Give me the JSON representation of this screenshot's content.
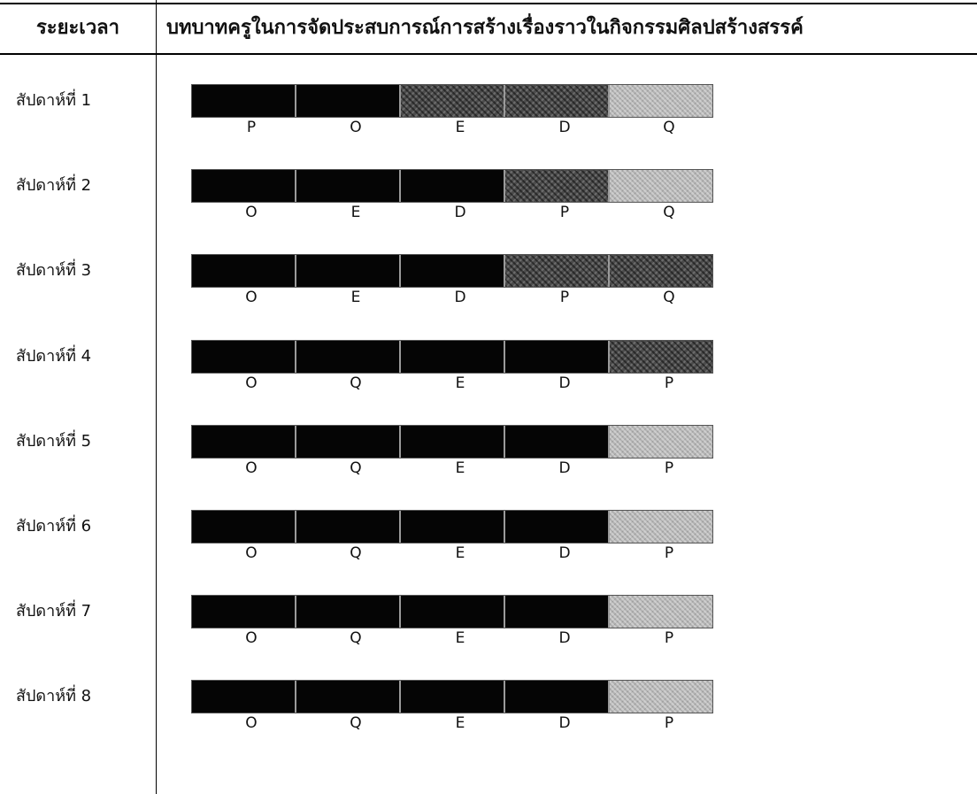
{
  "header": {
    "period_label": "ระยะเวลา",
    "role_label": "บทบาทครูในการจัดประสบการณ์การสร้างเรื่องราวในกิจกรรมศิลปสร้างสรรค์"
  },
  "rows": [
    {
      "label": "สัปดาห์ที่ 1",
      "segments": [
        {
          "letter": "P",
          "level": "full"
        },
        {
          "letter": "O",
          "level": "full"
        },
        {
          "letter": "E",
          "level": "mid"
        },
        {
          "letter": "D",
          "level": "mid"
        },
        {
          "letter": "Q",
          "level": "low"
        }
      ]
    },
    {
      "label": "สัปดาห์ที่ 2",
      "segments": [
        {
          "letter": "O",
          "level": "full"
        },
        {
          "letter": "E",
          "level": "full"
        },
        {
          "letter": "D",
          "level": "full"
        },
        {
          "letter": "P",
          "level": "mid"
        },
        {
          "letter": "Q",
          "level": "low"
        }
      ]
    },
    {
      "label": "สัปดาห์ที่ 3",
      "segments": [
        {
          "letter": "O",
          "level": "full"
        },
        {
          "letter": "E",
          "level": "full"
        },
        {
          "letter": "D",
          "level": "full"
        },
        {
          "letter": "P",
          "level": "mid"
        },
        {
          "letter": "Q",
          "level": "mid"
        }
      ]
    },
    {
      "label": "สัปดาห์ที่ 4",
      "segments": [
        {
          "letter": "O",
          "level": "full"
        },
        {
          "letter": "Q",
          "level": "full"
        },
        {
          "letter": "E",
          "level": "full"
        },
        {
          "letter": "D",
          "level": "full"
        },
        {
          "letter": "P",
          "level": "mid"
        }
      ]
    },
    {
      "label": "สัปดาห์ที่ 5",
      "segments": [
        {
          "letter": "O",
          "level": "full"
        },
        {
          "letter": "Q",
          "level": "full"
        },
        {
          "letter": "E",
          "level": "full"
        },
        {
          "letter": "D",
          "level": "full"
        },
        {
          "letter": "P",
          "level": "low"
        }
      ]
    },
    {
      "label": "สัปดาห์ที่ 6",
      "segments": [
        {
          "letter": "O",
          "level": "full"
        },
        {
          "letter": "Q",
          "level": "full"
        },
        {
          "letter": "E",
          "level": "full"
        },
        {
          "letter": "D",
          "level": "full"
        },
        {
          "letter": "P",
          "level": "low"
        }
      ]
    },
    {
      "label": "สัปดาห์ที่ 7",
      "segments": [
        {
          "letter": "O",
          "level": "full"
        },
        {
          "letter": "Q",
          "level": "full"
        },
        {
          "letter": "E",
          "level": "full"
        },
        {
          "letter": "D",
          "level": "full"
        },
        {
          "letter": "P",
          "level": "low"
        }
      ]
    },
    {
      "label": "สัปดาห์ที่ 8",
      "segments": [
        {
          "letter": "O",
          "level": "full"
        },
        {
          "letter": "Q",
          "level": "full"
        },
        {
          "letter": "E",
          "level": "full"
        },
        {
          "letter": "D",
          "level": "full"
        },
        {
          "letter": "P",
          "level": "low"
        }
      ]
    }
  ]
}
